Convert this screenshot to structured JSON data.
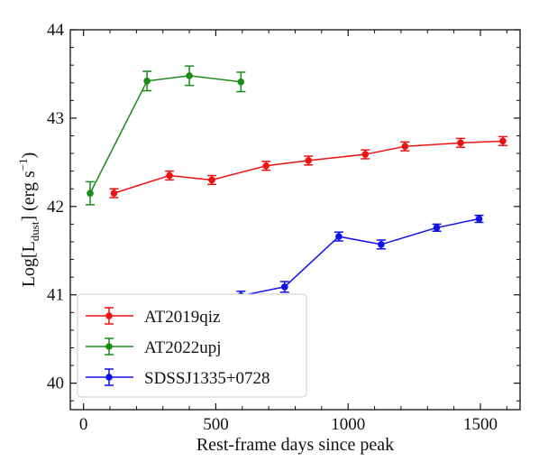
{
  "chart_data": {
    "type": "line",
    "title": "",
    "xlabel": "Rest-frame days since peak",
    "ylabel_parts": {
      "pre": "Log[L",
      "sub": "dust",
      "mid": "] (erg s",
      "sup": "−1",
      "post": ")"
    },
    "xlim": [
      -50,
      1650
    ],
    "ylim": [
      39.7,
      44
    ],
    "xticks": [
      0,
      500,
      1000,
      1500
    ],
    "xtick_labels": [
      "0",
      "500",
      "1000",
      "1500"
    ],
    "yticks": [
      40,
      41,
      42,
      43,
      44
    ],
    "ytick_labels": [
      "40",
      "41",
      "42",
      "43",
      "44"
    ],
    "grid": false,
    "legend_position": "lower-left",
    "series": [
      {
        "name": "AT2019qiz",
        "color": "#ee1111",
        "x": [
          115,
          325,
          485,
          690,
          850,
          1065,
          1215,
          1425,
          1585
        ],
        "y": [
          42.15,
          42.35,
          42.3,
          42.46,
          42.52,
          42.59,
          42.68,
          42.72,
          42.74
        ],
        "yerr": [
          0.05,
          0.05,
          0.05,
          0.05,
          0.05,
          0.05,
          0.05,
          0.05,
          0.05
        ]
      },
      {
        "name": "AT2022upj",
        "color": "#1a8a1a",
        "x": [
          25,
          240,
          400,
          595
        ],
        "y": [
          42.15,
          43.42,
          43.48,
          43.41
        ],
        "yerr": [
          0.13,
          0.11,
          0.11,
          0.11
        ]
      },
      {
        "name": "SDSSJ1335+0728",
        "color": "#1111ee",
        "x": [
          595,
          760,
          965,
          1125,
          1335,
          1495
        ],
        "y": [
          40.99,
          41.09,
          41.66,
          41.57,
          41.76,
          41.86
        ],
        "yerr": [
          0.05,
          0.06,
          0.05,
          0.05,
          0.04,
          0.04
        ]
      }
    ]
  }
}
